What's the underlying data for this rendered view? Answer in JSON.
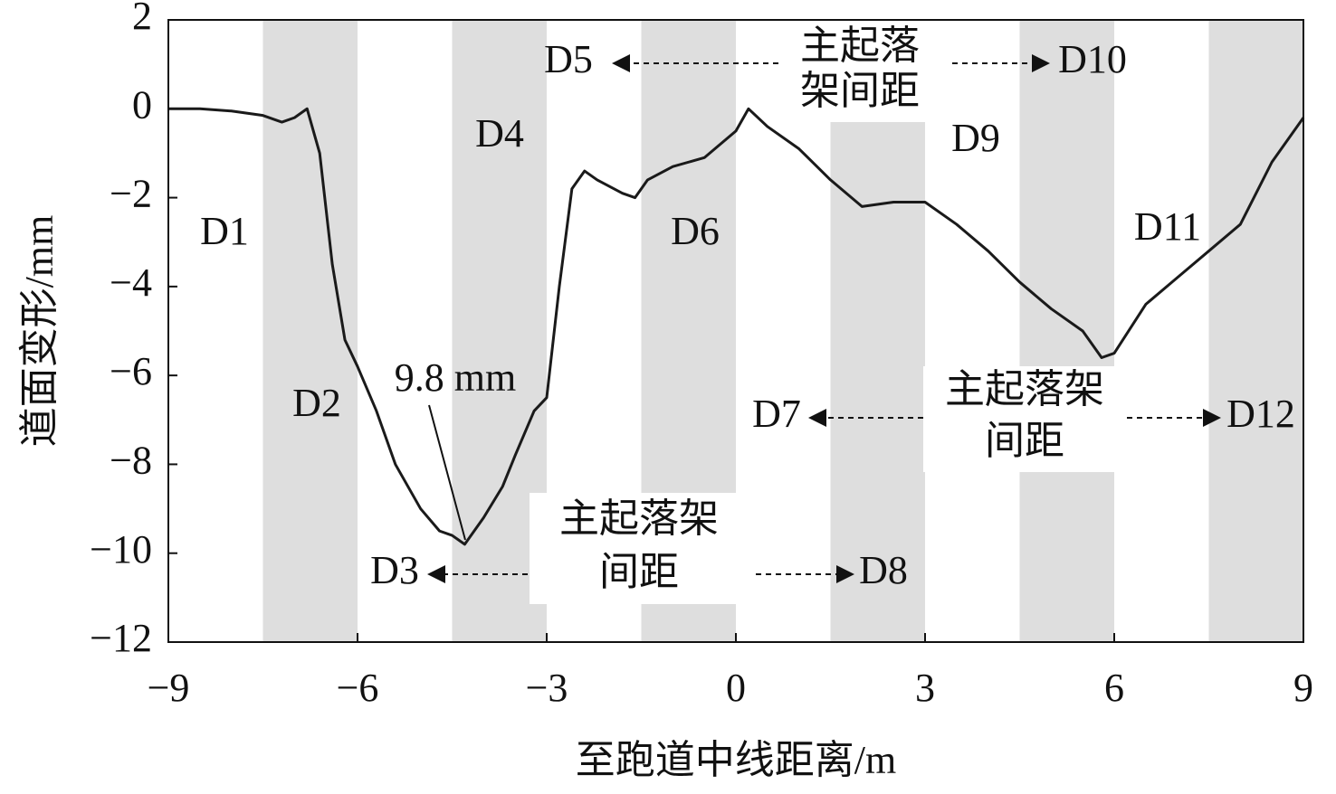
{
  "chart_data": {
    "type": "line",
    "x_label": "至跑道中线距离/m",
    "y_label": "道面变形/mm",
    "xlim": [
      -9,
      9
    ],
    "ylim": [
      -12,
      2
    ],
    "xticks": [
      {
        "value": -9,
        "label": "−9"
      },
      {
        "value": -6,
        "label": "−6"
      },
      {
        "value": -3,
        "label": "−3"
      },
      0,
      3,
      6,
      9
    ],
    "yticks": [
      2,
      0,
      {
        "value": -2,
        "label": "−2"
      },
      {
        "value": -4,
        "label": "−4"
      },
      {
        "value": -6,
        "label": "−6"
      },
      {
        "value": -8,
        "label": "−8"
      },
      {
        "value": -10,
        "label": "−10"
      },
      {
        "value": -12,
        "label": "−12"
      }
    ],
    "shaded_regions": [
      [
        -7.5,
        -6
      ],
      [
        -4.5,
        -3
      ],
      [
        -1.5,
        0
      ],
      [
        1.5,
        3
      ],
      [
        4.5,
        6
      ],
      [
        7.5,
        9
      ]
    ],
    "series": [
      {
        "color": "#1a1a1a",
        "x": [
          -9,
          -8.5,
          -8,
          -7.5,
          -7.2,
          -7,
          -6.8,
          -6.6,
          -6.4,
          -6.2,
          -6,
          -5.7,
          -5.4,
          -5,
          -4.7,
          -4.5,
          -4.3,
          -4,
          -3.7,
          -3.5,
          -3.2,
          -3,
          -2.8,
          -2.6,
          -2.4,
          -2.2,
          -1.8,
          -1.6,
          -1.4,
          -1,
          -0.5,
          0,
          0.2,
          0.5,
          1,
          1.5,
          2,
          2.5,
          3,
          3.5,
          4,
          4.5,
          5,
          5.5,
          5.8,
          6,
          6.5,
          7,
          7.5,
          8,
          8.5,
          9
        ],
        "values": [
          0,
          0,
          -0.05,
          -0.15,
          -0.3,
          -0.2,
          0,
          -1,
          -3.5,
          -5.2,
          -5.8,
          -6.8,
          -8,
          -9,
          -9.5,
          -9.6,
          -9.8,
          -9.2,
          -8.5,
          -7.8,
          -6.8,
          -6.5,
          -4,
          -1.8,
          -1.4,
          -1.6,
          -1.9,
          -2,
          -1.6,
          -1.3,
          -1.1,
          -0.5,
          0,
          -0.4,
          -0.9,
          -1.6,
          -2.2,
          -2.1,
          -2.1,
          -2.6,
          -3.2,
          -3.9,
          -4.5,
          -5,
          -5.6,
          -5.5,
          -4.4,
          -3.8,
          -3.2,
          -2.6,
          -1.2,
          -0.2
        ]
      }
    ],
    "peak_annotation": "9.8 mm",
    "region_labels": [
      "D1",
      "D2",
      "D3",
      "D4",
      "D5",
      "D6",
      "D7",
      "D8",
      "D9",
      "D10",
      "D11",
      "D12"
    ],
    "spacing_notes": [
      [
        "主起落",
        "架间距"
      ],
      [
        "主起落架",
        "间距"
      ],
      [
        "主起落架",
        "间距"
      ]
    ]
  }
}
